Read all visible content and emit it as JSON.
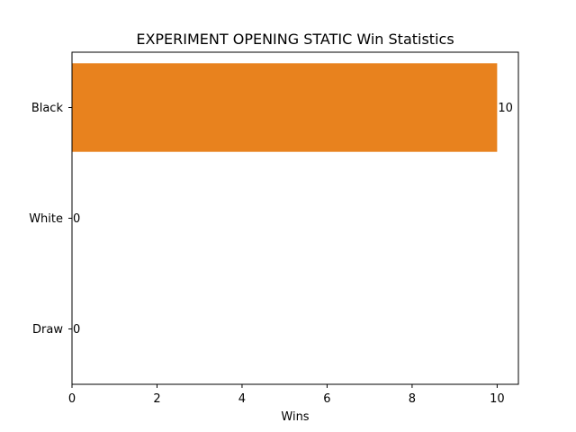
{
  "chart_data": {
    "type": "bar",
    "orientation": "horizontal",
    "title": "EXPERIMENT OPENING STATIC Win Statistics",
    "xlabel": "Wins",
    "ylabel": "",
    "categories": [
      "Black",
      "White",
      "Draw"
    ],
    "values": [
      10,
      0,
      0
    ],
    "data_labels": [
      "10",
      "0",
      "0"
    ],
    "xlim": [
      0,
      10.5
    ],
    "x_ticks": [
      0,
      2,
      4,
      6,
      8,
      10
    ],
    "x_tick_labels": [
      "0",
      "2",
      "4",
      "6",
      "8",
      "10"
    ],
    "bar_color": "#e8821e",
    "grid": false,
    "legend": "none"
  }
}
